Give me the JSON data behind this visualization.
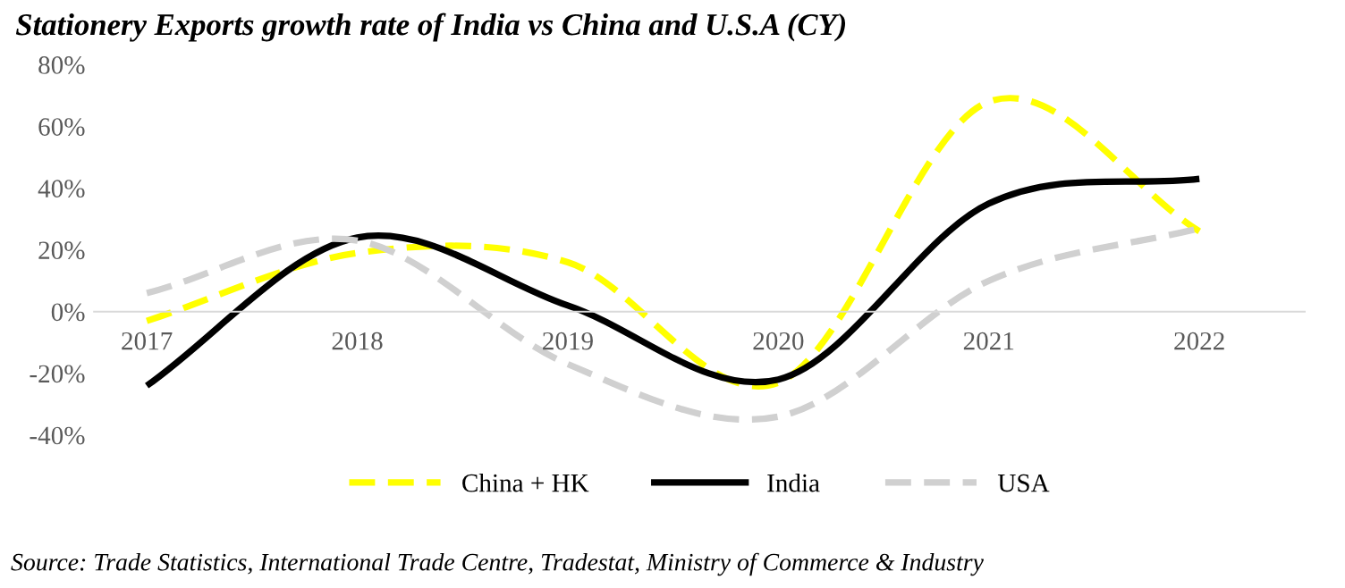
{
  "chart_data": {
    "type": "line",
    "title": "Stationery Exports growth rate of India vs China and U.S.A (CY)",
    "categories": [
      "2017",
      "2018",
      "2019",
      "2020",
      "2021",
      "2022"
    ],
    "series": [
      {
        "name": "China + HK",
        "color": "#ffff00",
        "line_style": "dashed",
        "values": [
          -3,
          19,
          16,
          -23,
          68,
          26
        ]
      },
      {
        "name": "India",
        "color": "#000000",
        "line_style": "solid",
        "values": [
          -24,
          24,
          2,
          -22,
          35,
          43
        ]
      },
      {
        "name": "USA",
        "color": "#d0d0d0",
        "line_style": "dashed",
        "values": [
          6,
          23,
          -17,
          -34,
          10,
          27
        ]
      }
    ],
    "ylim": [
      -40,
      80
    ],
    "yticks": [
      {
        "value": -40,
        "label": "-40%"
      },
      {
        "value": -20,
        "label": "-20%"
      },
      {
        "value": 0,
        "label": "0%"
      },
      {
        "value": 20,
        "label": "20%"
      },
      {
        "value": 40,
        "label": "40%"
      },
      {
        "value": 60,
        "label": "60%"
      },
      {
        "value": 80,
        "label": "80%"
      }
    ],
    "grid": false,
    "legend": "bottom",
    "marker": "none",
    "annotations": [
      "Source: Trade Statistics, International Trade Centre, Tradestat, Ministry of Commerce & Industry"
    ]
  }
}
